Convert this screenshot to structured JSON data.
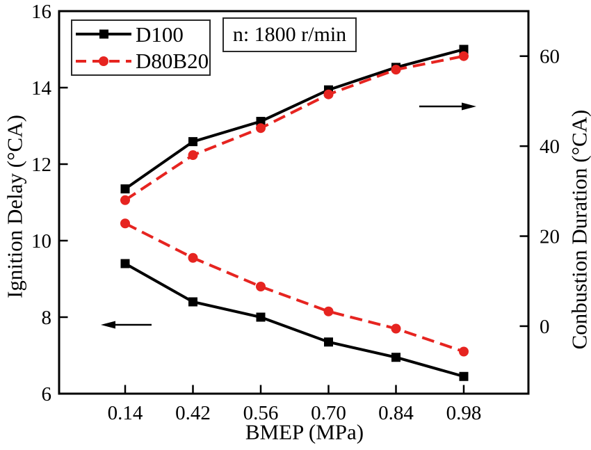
{
  "chart_data": {
    "type": "line",
    "title": "",
    "annotation": "n: 1800 r/min",
    "xlabel": "BMEP (MPa)",
    "x_categories": [
      "0.14",
      "0.42",
      "0.56",
      "0.70",
      "0.84",
      "0.98"
    ],
    "left_axis": {
      "label": "Ignition Delay (°CA)",
      "range": [
        6,
        16
      ],
      "ticks": [
        6,
        8,
        10,
        12,
        14,
        16
      ]
    },
    "right_axis": {
      "label": "Conbustion Duration (°CA)",
      "range": [
        -15,
        70
      ],
      "ticks": [
        0,
        20,
        40,
        60
      ]
    },
    "series": [
      {
        "name": "D100",
        "color": "#000000",
        "line_style": "solid",
        "marker": "square",
        "ignition_delay": [
          9.4,
          8.4,
          8.0,
          7.35,
          6.95,
          6.45
        ],
        "combustion_duration": [
          30.5,
          41,
          45.5,
          52.5,
          57.5,
          61.5
        ]
      },
      {
        "name": "D80B20",
        "color": "#e62420",
        "line_style": "dashed",
        "marker": "circle",
        "ignition_delay": [
          10.45,
          9.55,
          8.8,
          8.15,
          7.7,
          7.1
        ],
        "combustion_duration": [
          28,
          38,
          44,
          51.5,
          57,
          60
        ]
      }
    ],
    "legend_position": "top-left",
    "arrows": [
      {
        "direction": "left",
        "points_to": "left_axis"
      },
      {
        "direction": "right",
        "points_to": "right_axis"
      }
    ],
    "grid": false,
    "frame_color": "#000000",
    "background": "#ffffff"
  }
}
